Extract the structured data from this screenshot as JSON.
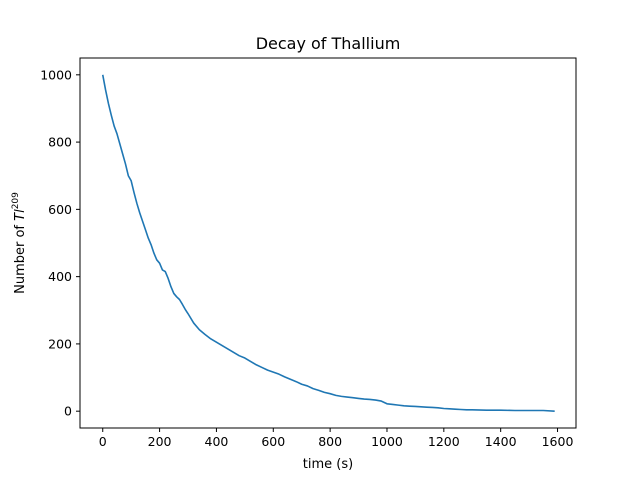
{
  "chart_data": {
    "type": "line",
    "title": "Decay of Thallium",
    "xlabel": "time (s)",
    "ylabel_prefix": "Number of ",
    "ylabel_symbol": "Tl",
    "ylabel_superscript": "209",
    "xlim": [
      -80,
      1665
    ],
    "ylim": [
      -50,
      1050
    ],
    "xticks": [
      0,
      200,
      400,
      600,
      800,
      1000,
      1200,
      1400,
      1600
    ],
    "yticks": [
      0,
      200,
      400,
      600,
      800,
      1000
    ],
    "grid": false,
    "series": [
      {
        "color": "#1f77b4",
        "x": [
          0,
          10,
          20,
          30,
          40,
          50,
          60,
          70,
          80,
          90,
          100,
          110,
          120,
          130,
          140,
          150,
          160,
          170,
          180,
          190,
          200,
          210,
          220,
          230,
          240,
          250,
          260,
          270,
          280,
          290,
          300,
          320,
          340,
          360,
          380,
          400,
          420,
          440,
          460,
          480,
          500,
          520,
          540,
          560,
          580,
          600,
          620,
          640,
          660,
          680,
          700,
          720,
          740,
          760,
          780,
          800,
          820,
          840,
          860,
          880,
          900,
          920,
          940,
          960,
          980,
          1000,
          1020,
          1040,
          1060,
          1080,
          1100,
          1120,
          1140,
          1160,
          1180,
          1200,
          1220,
          1240,
          1260,
          1280,
          1300,
          1350,
          1400,
          1450,
          1500,
          1550,
          1590
        ],
        "y": [
          1000,
          955,
          915,
          880,
          848,
          825,
          795,
          765,
          735,
          700,
          685,
          650,
          618,
          590,
          565,
          540,
          515,
          495,
          470,
          450,
          440,
          420,
          415,
          395,
          370,
          350,
          340,
          332,
          318,
          303,
          290,
          262,
          242,
          228,
          215,
          205,
          195,
          185,
          175,
          165,
          158,
          148,
          138,
          130,
          122,
          116,
          110,
          102,
          95,
          88,
          80,
          75,
          67,
          62,
          56,
          52,
          47,
          44,
          42,
          40,
          38,
          36,
          35,
          33,
          30,
          22,
          20,
          18,
          16,
          15,
          14,
          13,
          12,
          11,
          10,
          8,
          7,
          6,
          5,
          4,
          4,
          3,
          3,
          2,
          2,
          2,
          0
        ]
      }
    ]
  }
}
